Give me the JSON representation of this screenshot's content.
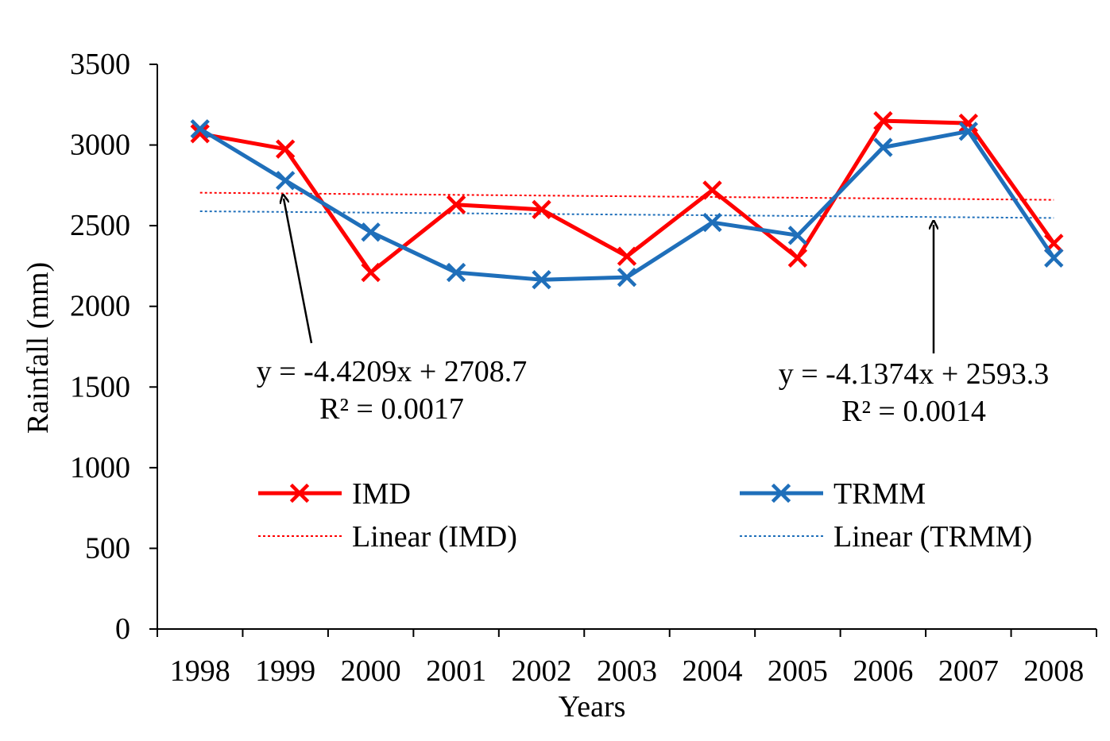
{
  "chart_data": {
    "type": "line",
    "title": "",
    "xlabel": "Years",
    "ylabel": "Rainfall (mm)",
    "categories": [
      "1998",
      "1999",
      "2000",
      "2001",
      "2002",
      "2003",
      "2004",
      "2005",
      "2006",
      "2007",
      "2008"
    ],
    "ylim": [
      0,
      3500
    ],
    "yticks": [
      "0",
      "500",
      "1000",
      "1500",
      "2000",
      "2500",
      "3000",
      "3500"
    ],
    "grid": false,
    "legend_position": "inside-bottom",
    "series": [
      {
        "name": "IMD",
        "values": [
          3070,
          2975,
          2210,
          2630,
          2600,
          2310,
          2720,
          2300,
          3150,
          3135,
          2390
        ],
        "color": "#ff0000",
        "marker": "x"
      },
      {
        "name": "TRMM",
        "values": [
          3100,
          2780,
          2460,
          2210,
          2165,
          2180,
          2520,
          2440,
          2985,
          3085,
          2300
        ],
        "color": "#1f6fba",
        "marker": "x"
      }
    ],
    "trendlines": [
      {
        "name": "Linear (IMD)",
        "series": "IMD",
        "slope": -4.4209,
        "intercept": 2708.7,
        "equation": "y = -4.4209x + 2708.7",
        "r2": "R² = 0.0017",
        "color": "#ff0000",
        "style": "dotted"
      },
      {
        "name": "Linear (TRMM)",
        "series": "TRMM",
        "slope": -4.1374,
        "intercept": 2593.3,
        "equation": "y = -4.1374x + 2593.3",
        "r2": "R² = 0.0014",
        "color": "#1f6fba",
        "style": "dotted"
      }
    ],
    "annotation_arrow_color": "#000000"
  }
}
